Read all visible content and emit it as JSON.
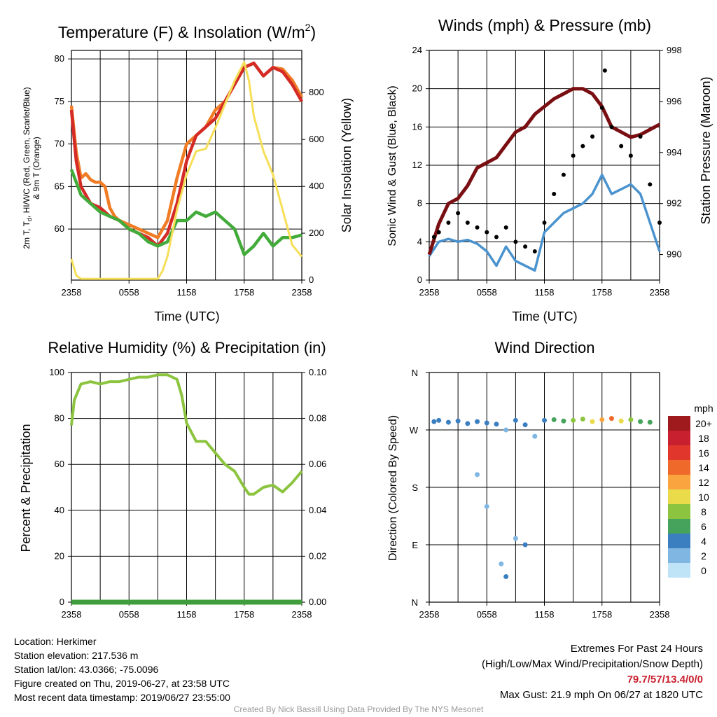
{
  "panels": {
    "temp": {
      "title": "Temperature (F) & Insolation (W/m",
      "title_sup": "2",
      "title_tail": ")",
      "ylabel_left_1": "2m T, T",
      "ylabel_left_sub": "d",
      "ylabel_left_2": ", HI/WC (Red, Green, Scarlet/Blue)",
      "ylabel_left_3": "& 9m T (Orange)",
      "ylabel_right": "Solar Insolation (Yellow)",
      "xlabel": "Time (UTC)"
    },
    "wind": {
      "title": "Winds (mph) & Pressure (mb)",
      "ylabel_left": "Sonic Wind & Gust (Blue, Black)",
      "ylabel_right": "Station Pressure (Maroon)",
      "xlabel": "Time (UTC)"
    },
    "rh": {
      "title": "Relative Humidity (%) & Precipitation (in)",
      "ylabel_left": "Percent & Precipitation"
    },
    "dir": {
      "title": "Wind Direction",
      "ylabel_left": "Direction (Colored By Speed)",
      "colorbar_title": "mph"
    }
  },
  "chart_data": [
    {
      "id": "temp",
      "type": "line",
      "x_ticks": [
        "2358",
        "0558",
        "1158",
        "1758",
        "2358"
      ],
      "x_hours": [
        0,
        24
      ],
      "ylim_left": [
        54,
        81
      ],
      "yticks_left": [
        60,
        65,
        70,
        75,
        80
      ],
      "ylim_right": [
        0,
        980
      ],
      "yticks_right": [
        0,
        200,
        400,
        600,
        800
      ],
      "series": [
        {
          "color": "#f07c25",
          "axis": "left",
          "points": [
            [
              0,
              74.5
            ],
            [
              0.5,
              69
            ],
            [
              1,
              66
            ],
            [
              1.5,
              66.5
            ],
            [
              2,
              65.8
            ],
            [
              2.5,
              65.5
            ],
            [
              3,
              65.5
            ],
            [
              3.5,
              65
            ],
            [
              4,
              62.5
            ],
            [
              4.5,
              61.5
            ],
            [
              5,
              61
            ],
            [
              6,
              60.5
            ],
            [
              7,
              60
            ],
            [
              8,
              59.5
            ],
            [
              9,
              59
            ],
            [
              10,
              61
            ],
            [
              11,
              66
            ],
            [
              12,
              70
            ],
            [
              13,
              71
            ],
            [
              14,
              72
            ],
            [
              15,
              74
            ],
            [
              16,
              75
            ],
            [
              17,
              77
            ],
            [
              18,
              79
            ],
            [
              19,
              79.5
            ],
            [
              20,
              78
            ],
            [
              21,
              79
            ],
            [
              22,
              78.8
            ],
            [
              23,
              77.5
            ],
            [
              24,
              75.5
            ]
          ]
        },
        {
          "color": "#d42b26",
          "axis": "left",
          "points": [
            [
              0,
              74
            ],
            [
              0.5,
              68
            ],
            [
              1,
              65
            ],
            [
              1.5,
              64
            ],
            [
              2,
              63
            ],
            [
              3,
              62.5
            ],
            [
              4,
              61.5
            ],
            [
              5,
              61
            ],
            [
              6,
              60
            ],
            [
              7,
              59.5
            ],
            [
              8,
              59
            ],
            [
              9,
              58
            ],
            [
              10,
              59.5
            ],
            [
              11,
              63
            ],
            [
              12,
              68
            ],
            [
              13,
              71
            ],
            [
              14,
              72
            ],
            [
              15,
              73
            ],
            [
              16,
              75
            ],
            [
              17,
              77
            ],
            [
              18,
              79
            ],
            [
              19,
              79.5
            ],
            [
              20,
              78
            ],
            [
              21,
              79
            ],
            [
              22,
              78.5
            ],
            [
              23,
              77
            ],
            [
              24,
              75
            ]
          ]
        },
        {
          "color": "#42ab3a",
          "axis": "left",
          "points": [
            [
              0,
              67
            ],
            [
              0.5,
              65.5
            ],
            [
              1,
              64
            ],
            [
              2,
              63
            ],
            [
              3,
              62
            ],
            [
              4,
              61.5
            ],
            [
              5,
              61
            ],
            [
              6,
              60
            ],
            [
              7,
              59.5
            ],
            [
              8,
              58.5
            ],
            [
              9,
              58
            ],
            [
              10,
              58.5
            ],
            [
              11,
              61
            ],
            [
              12,
              61
            ],
            [
              13,
              62
            ],
            [
              14,
              61.5
            ],
            [
              15,
              62
            ],
            [
              16,
              61
            ],
            [
              17,
              60
            ],
            [
              18,
              57
            ],
            [
              19,
              58
            ],
            [
              20,
              59.5
            ],
            [
              21,
              58
            ],
            [
              22,
              59
            ],
            [
              23,
              59
            ],
            [
              24,
              59.3
            ]
          ]
        },
        {
          "color": "#f6df58",
          "axis": "right",
          "points": [
            [
              0,
              90
            ],
            [
              0.5,
              20
            ],
            [
              1,
              5
            ],
            [
              3,
              5
            ],
            [
              6,
              5
            ],
            [
              9,
              5
            ],
            [
              9.5,
              40
            ],
            [
              10,
              100
            ],
            [
              11,
              300
            ],
            [
              12,
              450
            ],
            [
              13,
              550
            ],
            [
              14,
              560
            ],
            [
              15,
              650
            ],
            [
              16,
              750
            ],
            [
              17,
              850
            ],
            [
              18,
              930
            ],
            [
              18.5,
              850
            ],
            [
              19,
              700
            ],
            [
              20,
              550
            ],
            [
              21,
              450
            ],
            [
              22,
              300
            ],
            [
              23,
              150
            ],
            [
              24,
              100
            ]
          ]
        }
      ]
    },
    {
      "id": "wind",
      "type": "line",
      "x_ticks": [
        "2358",
        "0558",
        "1158",
        "1758",
        "2358"
      ],
      "ylim_left": [
        0,
        24
      ],
      "yticks_left": [
        0,
        4,
        8,
        12,
        16,
        20,
        24
      ],
      "ylim_right": [
        989,
        998
      ],
      "yticks_right": [
        990,
        992,
        994,
        996,
        998
      ],
      "series": [
        {
          "color": "#4a93cf",
          "axis": "left",
          "points": [
            [
              0,
              2.5
            ],
            [
              1,
              4
            ],
            [
              2,
              4.3
            ],
            [
              3,
              4
            ],
            [
              4,
              4.2
            ],
            [
              5,
              3.8
            ],
            [
              6,
              3
            ],
            [
              7,
              1.5
            ],
            [
              8,
              3.5
            ],
            [
              9,
              2
            ],
            [
              10,
              1.5
            ],
            [
              11,
              1
            ],
            [
              12,
              5
            ],
            [
              13,
              6
            ],
            [
              14,
              7
            ],
            [
              15,
              7.5
            ],
            [
              16,
              8
            ],
            [
              17,
              9
            ],
            [
              18,
              11
            ],
            [
              19,
              9
            ],
            [
              20,
              9.5
            ],
            [
              21,
              10
            ],
            [
              22,
              9
            ],
            [
              23,
              6
            ],
            [
              24,
              3
            ]
          ]
        },
        {
          "color": "#7a0f13",
          "axis": "right",
          "points": [
            [
              0,
              990.0
            ],
            [
              1,
              991.2
            ],
            [
              2,
              992.0
            ],
            [
              3,
              992.2
            ],
            [
              4,
              992.7
            ],
            [
              5,
              993.4
            ],
            [
              6,
              993.6
            ],
            [
              7,
              993.8
            ],
            [
              8,
              994.3
            ],
            [
              9,
              994.8
            ],
            [
              10,
              995.0
            ],
            [
              11,
              995.5
            ],
            [
              12,
              995.8
            ],
            [
              13,
              996.1
            ],
            [
              14,
              996.3
            ],
            [
              15,
              996.5
            ],
            [
              16,
              996.5
            ],
            [
              17,
              996.3
            ],
            [
              18,
              995.8
            ],
            [
              19,
              995.0
            ],
            [
              20,
              994.8
            ],
            [
              21,
              994.6
            ],
            [
              22,
              994.7
            ],
            [
              23,
              994.9
            ],
            [
              24,
              995.1
            ]
          ]
        }
      ],
      "gusts": [
        [
          0.5,
          4.5
        ],
        [
          1,
          5
        ],
        [
          2,
          6
        ],
        [
          3,
          7
        ],
        [
          4,
          6
        ],
        [
          5,
          5.5
        ],
        [
          6,
          5
        ],
        [
          7,
          4.5
        ],
        [
          8,
          5.5
        ],
        [
          9,
          4
        ],
        [
          10,
          3.5
        ],
        [
          11,
          3
        ],
        [
          12,
          6
        ],
        [
          13,
          9
        ],
        [
          14,
          11
        ],
        [
          15,
          13
        ],
        [
          16,
          14
        ],
        [
          17,
          15
        ],
        [
          18,
          18
        ],
        [
          18.3,
          21.9
        ],
        [
          19,
          16
        ],
        [
          20,
          14
        ],
        [
          21,
          13
        ],
        [
          22,
          15
        ],
        [
          23,
          10
        ],
        [
          24,
          6
        ]
      ]
    },
    {
      "id": "rh",
      "type": "line",
      "x_ticks": [
        "2358",
        "0558",
        "1158",
        "1758",
        "2358"
      ],
      "ylim_left": [
        0,
        100
      ],
      "yticks_left": [
        0,
        20,
        40,
        60,
        80,
        100
      ],
      "ylim_right": [
        0,
        0.1
      ],
      "yticks_right": [
        "0.00",
        "0.02",
        "0.04",
        "0.06",
        "0.08",
        "0.10"
      ],
      "series": [
        {
          "color": "#8cc43f",
          "axis": "left",
          "points": [
            [
              0,
              77
            ],
            [
              0.3,
              88
            ],
            [
              1,
              95
            ],
            [
              2,
              96
            ],
            [
              3,
              95
            ],
            [
              4,
              96
            ],
            [
              5,
              96
            ],
            [
              6,
              97
            ],
            [
              7,
              98
            ],
            [
              8,
              98
            ],
            [
              9,
              99
            ],
            [
              10,
              99
            ],
            [
              11,
              97
            ],
            [
              11.5,
              90
            ],
            [
              12,
              78
            ],
            [
              13,
              70
            ],
            [
              14,
              70
            ],
            [
              15,
              65
            ],
            [
              16,
              60
            ],
            [
              17,
              57
            ],
            [
              18,
              50
            ],
            [
              18.5,
              47
            ],
            [
              19,
              47
            ],
            [
              20,
              50
            ],
            [
              21,
              51
            ],
            [
              22,
              48
            ],
            [
              23,
              52
            ],
            [
              24,
              57
            ]
          ]
        },
        {
          "color": "#3f9e3b",
          "axis": "right",
          "points": [
            [
              0,
              0
            ],
            [
              24,
              0
            ]
          ]
        }
      ]
    },
    {
      "id": "dir",
      "type": "scatter",
      "x_ticks": [
        "2358",
        "0558",
        "1158",
        "1758",
        "2358"
      ],
      "y_ticks": [
        "N",
        "E",
        "S",
        "W",
        "N"
      ],
      "ylim": [
        0,
        360
      ],
      "colorbar": {
        "labels": [
          "20+",
          "18",
          "16",
          "14",
          "12",
          "10",
          "8",
          "6",
          "4",
          "2",
          "0"
        ],
        "colors": [
          "#9e1a1d",
          "#c8202f",
          "#e0362b",
          "#ef6a2a",
          "#f9a43e",
          "#eadb4a",
          "#8cc43f",
          "#45a35b",
          "#3c7fc0",
          "#7fb6e2",
          "#bfe3f7"
        ]
      },
      "points": [
        [
          0.5,
          283,
          3
        ],
        [
          1,
          285,
          4
        ],
        [
          2,
          282,
          4
        ],
        [
          3,
          284,
          3
        ],
        [
          4,
          280,
          3
        ],
        [
          5,
          283,
          4
        ],
        [
          6,
          281,
          3
        ],
        [
          7,
          279,
          3
        ],
        [
          8,
          270,
          2
        ],
        [
          9,
          285,
          4
        ],
        [
          10,
          278,
          3
        ],
        [
          11,
          260,
          1
        ],
        [
          12,
          285,
          4
        ],
        [
          13,
          286,
          5
        ],
        [
          14,
          284,
          6
        ],
        [
          15,
          285,
          7
        ],
        [
          16,
          287,
          8
        ],
        [
          17,
          283,
          10
        ],
        [
          18,
          286,
          12
        ],
        [
          19,
          288,
          13
        ],
        [
          20,
          284,
          9
        ],
        [
          21,
          286,
          8
        ],
        [
          22,
          283,
          6
        ],
        [
          23,
          282,
          5
        ],
        [
          7.5,
          60,
          1
        ],
        [
          8,
          40,
          4
        ],
        [
          9,
          100,
          2
        ],
        [
          10,
          90,
          3
        ],
        [
          5,
          200,
          1
        ],
        [
          6,
          150,
          2
        ]
      ]
    }
  ],
  "footer": {
    "location": "Location: Herkimer",
    "elevation": "Station elevation: 217.536 m",
    "latlon": "Station lat/lon: 43.0366; -75.0096",
    "created": "Figure created on Thu, 2019-06-27, at 23:58 UTC",
    "recent": "Most recent data timestamp: 2019/06/27 23:55:00",
    "extremes_title": "Extremes For Past 24 Hours",
    "extremes_sub": "(High/Low/Max Wind/Precipitation/Snow Depth)",
    "extremes_values": "79.7/57/13.4/0/0",
    "max_gust": "Max Gust: 21.9 mph On 06/27 at 1820 UTC",
    "credit": "Created By Nick Bassill Using Data Provided By The NYS Mesonet"
  }
}
